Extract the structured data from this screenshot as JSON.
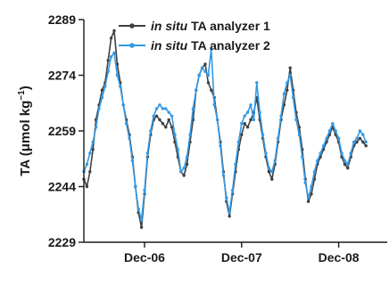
{
  "chart_data": {
    "type": "line",
    "ylabel": "TA (μmol kg⁻¹)",
    "ylabel_main": "TA (μmol kg",
    "ylabel_sup": "−1",
    "ylabel_close": ")",
    "ylim": [
      2229,
      2289
    ],
    "yticks": [
      2229,
      2244,
      2259,
      2274,
      2289
    ],
    "xlim": [
      0,
      100
    ],
    "xticks": [
      {
        "x": 20,
        "label": "Dec-06"
      },
      {
        "x": 52,
        "label": "Dec-07"
      },
      {
        "x": 84,
        "label": "Dec-08"
      }
    ],
    "legend_position": "top-center",
    "series": [
      {
        "name_italic": "in situ",
        "name_rest": " TA analyzer 1",
        "color": "#404040",
        "points": [
          [
            0,
            2246
          ],
          [
            1,
            2244
          ],
          [
            2,
            2248
          ],
          [
            3,
            2254
          ],
          [
            4,
            2262
          ],
          [
            5,
            2266
          ],
          [
            6,
            2270
          ],
          [
            7,
            2272
          ],
          [
            8,
            2278
          ],
          [
            9,
            2284
          ],
          [
            10,
            2286
          ],
          [
            11,
            2277
          ],
          [
            12,
            2272
          ],
          [
            13,
            2266
          ],
          [
            14,
            2262
          ],
          [
            15,
            2258
          ],
          [
            16,
            2252
          ],
          [
            17,
            2244
          ],
          [
            18,
            2237
          ],
          [
            19,
            2233
          ],
          [
            20,
            2242
          ],
          [
            21,
            2252
          ],
          [
            22,
            2258
          ],
          [
            23,
            2262
          ],
          [
            24,
            2263
          ],
          [
            25,
            2262
          ],
          [
            26,
            2261
          ],
          [
            27,
            2260
          ],
          [
            28,
            2262
          ],
          [
            29,
            2260
          ],
          [
            30,
            2256
          ],
          [
            31,
            2252
          ],
          [
            32,
            2248
          ],
          [
            33,
            2247
          ],
          [
            34,
            2250
          ],
          [
            35,
            2256
          ],
          [
            36,
            2262
          ],
          [
            37,
            2270
          ],
          [
            38,
            2274
          ],
          [
            39,
            2276
          ],
          [
            40,
            2277
          ],
          [
            41,
            2272
          ],
          [
            42,
            2270
          ],
          [
            43,
            2268
          ],
          [
            44,
            2262
          ],
          [
            45,
            2256
          ],
          [
            46,
            2248
          ],
          [
            47,
            2240
          ],
          [
            48,
            2236
          ],
          [
            49,
            2242
          ],
          [
            50,
            2248
          ],
          [
            51,
            2254
          ],
          [
            52,
            2258
          ],
          [
            53,
            2261
          ],
          [
            54,
            2260
          ],
          [
            55,
            2262
          ],
          [
            56,
            2264
          ],
          [
            57,
            2268
          ],
          [
            58,
            2262
          ],
          [
            59,
            2257
          ],
          [
            60,
            2252
          ],
          [
            61,
            2248
          ],
          [
            62,
            2246
          ],
          [
            63,
            2250
          ],
          [
            64,
            2256
          ],
          [
            65,
            2262
          ],
          [
            66,
            2266
          ],
          [
            67,
            2270
          ],
          [
            68,
            2276
          ],
          [
            69,
            2270
          ],
          [
            70,
            2264
          ],
          [
            71,
            2260
          ],
          [
            72,
            2254
          ],
          [
            73,
            2246
          ],
          [
            74,
            2240
          ],
          [
            75,
            2242
          ],
          [
            76,
            2246
          ],
          [
            77,
            2250
          ],
          [
            78,
            2252
          ],
          [
            79,
            2254
          ],
          [
            80,
            2256
          ],
          [
            81,
            2258
          ],
          [
            82,
            2260
          ],
          [
            83,
            2258
          ],
          [
            84,
            2256
          ],
          [
            85,
            2252
          ],
          [
            86,
            2250
          ],
          [
            87,
            2249
          ],
          [
            88,
            2252
          ],
          [
            89,
            2255
          ],
          [
            90,
            2256
          ],
          [
            91,
            2257
          ],
          [
            92,
            2256
          ],
          [
            93,
            2255
          ]
        ]
      },
      {
        "name_italic": "in situ",
        "name_rest": " TA analyzer 2",
        "color": "#3399e6",
        "points": [
          [
            0,
            2248
          ],
          [
            1,
            2250
          ],
          [
            2,
            2253
          ],
          [
            3,
            2256
          ],
          [
            4,
            2260
          ],
          [
            5,
            2265
          ],
          [
            6,
            2268
          ],
          [
            7,
            2271
          ],
          [
            8,
            2275
          ],
          [
            9,
            2279
          ],
          [
            10,
            2280
          ],
          [
            11,
            2274
          ],
          [
            12,
            2271
          ],
          [
            13,
            2266
          ],
          [
            14,
            2261
          ],
          [
            15,
            2257
          ],
          [
            16,
            2251
          ],
          [
            17,
            2244
          ],
          [
            18,
            2238
          ],
          [
            19,
            2235
          ],
          [
            20,
            2243
          ],
          [
            21,
            2253
          ],
          [
            22,
            2259
          ],
          [
            23,
            2263
          ],
          [
            24,
            2265
          ],
          [
            25,
            2266
          ],
          [
            26,
            2265
          ],
          [
            27,
            2265
          ],
          [
            28,
            2264
          ],
          [
            29,
            2263
          ],
          [
            30,
            2258
          ],
          [
            31,
            2254
          ],
          [
            32,
            2248
          ],
          [
            33,
            2249
          ],
          [
            34,
            2252
          ],
          [
            35,
            2258
          ],
          [
            36,
            2265
          ],
          [
            37,
            2270
          ],
          [
            38,
            2274
          ],
          [
            39,
            2276
          ],
          [
            40,
            2275
          ],
          [
            41,
            2274
          ],
          [
            42,
            2281
          ],
          [
            43,
            2266
          ],
          [
            44,
            2262
          ],
          [
            45,
            2255
          ],
          [
            46,
            2247
          ],
          [
            47,
            2241
          ],
          [
            48,
            2237
          ],
          [
            49,
            2243
          ],
          [
            50,
            2250
          ],
          [
            51,
            2256
          ],
          [
            52,
            2261
          ],
          [
            53,
            2263
          ],
          [
            54,
            2264
          ],
          [
            55,
            2266
          ],
          [
            56,
            2262
          ],
          [
            57,
            2272
          ],
          [
            58,
            2264
          ],
          [
            59,
            2258
          ],
          [
            60,
            2253
          ],
          [
            61,
            2249
          ],
          [
            62,
            2248
          ],
          [
            63,
            2251
          ],
          [
            64,
            2257
          ],
          [
            65,
            2263
          ],
          [
            66,
            2269
          ],
          [
            67,
            2272
          ],
          [
            68,
            2274
          ],
          [
            69,
            2268
          ],
          [
            70,
            2262
          ],
          [
            71,
            2258
          ],
          [
            72,
            2252
          ],
          [
            73,
            2245
          ],
          [
            74,
            2241
          ],
          [
            75,
            2244
          ],
          [
            76,
            2248
          ],
          [
            77,
            2251
          ],
          [
            78,
            2253
          ],
          [
            79,
            2255
          ],
          [
            80,
            2257
          ],
          [
            81,
            2259
          ],
          [
            82,
            2261
          ],
          [
            83,
            2259
          ],
          [
            84,
            2257
          ],
          [
            85,
            2253
          ],
          [
            86,
            2251
          ],
          [
            87,
            2250
          ],
          [
            88,
            2253
          ],
          [
            89,
            2256
          ],
          [
            90,
            2257
          ],
          [
            91,
            2259
          ],
          [
            92,
            2258
          ],
          [
            93,
            2256
          ]
        ]
      }
    ]
  }
}
